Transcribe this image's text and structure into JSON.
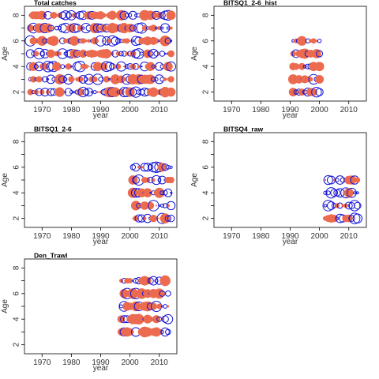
{
  "colors": {
    "positive": "#ec6a4e",
    "negative": "#1515d6",
    "axis": "#000000"
  },
  "chart_data": [
    {
      "type": "scatter",
      "title": "Total catches",
      "xlabel": "year",
      "ylabel": "Age",
      "xlim": [
        1964,
        2016
      ],
      "ylim": [
        1.3,
        8.7
      ],
      "xticks": [
        "1970",
        "1980",
        "1990",
        "2000",
        "2010"
      ],
      "yticks": [
        "2",
        "4",
        "6",
        "8"
      ],
      "note": "bubble residual plot; filled red = positive residual, open blue = negative residual",
      "years": [
        1966,
        2014
      ],
      "ages": [
        2,
        8
      ]
    },
    {
      "type": "scatter",
      "title": "BITSQ1_2-6_hist",
      "xlabel": "year",
      "ylabel": "Age",
      "xlim": [
        1964,
        2016
      ],
      "ylim": [
        1.3,
        8.7
      ],
      "xticks": [
        "1970",
        "1980",
        "1990",
        "2000",
        "2010"
      ],
      "yticks": [
        "2",
        "4",
        "6",
        "8"
      ],
      "years": [
        1991,
        2000
      ],
      "ages": [
        2,
        6
      ]
    },
    {
      "type": "scatter",
      "title": "BITSQ1_2-6",
      "xlabel": "year",
      "ylabel": "Age",
      "xlim": [
        1964,
        2016
      ],
      "ylim": [
        1.3,
        8.7
      ],
      "xticks": [
        "1970",
        "1980",
        "1990",
        "2000",
        "2010"
      ],
      "yticks": [
        "2",
        "4",
        "6",
        "8"
      ],
      "years": [
        2001,
        2014
      ],
      "ages": [
        2,
        6
      ]
    },
    {
      "type": "scatter",
      "title": "BITSQ4_raw",
      "xlabel": "year",
      "ylabel": "Age",
      "xlim": [
        1964,
        2016
      ],
      "ylim": [
        1.3,
        8.7
      ],
      "xticks": [
        "1970",
        "1980",
        "1990",
        "2000",
        "2010"
      ],
      "yticks": [
        "2",
        "4",
        "6",
        "8"
      ],
      "years": [
        2002,
        2013
      ],
      "ages": [
        2,
        5
      ]
    },
    {
      "type": "scatter",
      "title": "Den_Trawl",
      "xlabel": "year",
      "ylabel": "Age",
      "xlim": [
        1964,
        2016
      ],
      "ylim": [
        1.3,
        8.7
      ],
      "xticks": [
        "1970",
        "1980",
        "1990",
        "2000",
        "2010"
      ],
      "yticks": [
        "2",
        "4",
        "6",
        "8"
      ],
      "years": [
        1997,
        2013
      ],
      "ages": [
        3,
        7
      ]
    }
  ]
}
